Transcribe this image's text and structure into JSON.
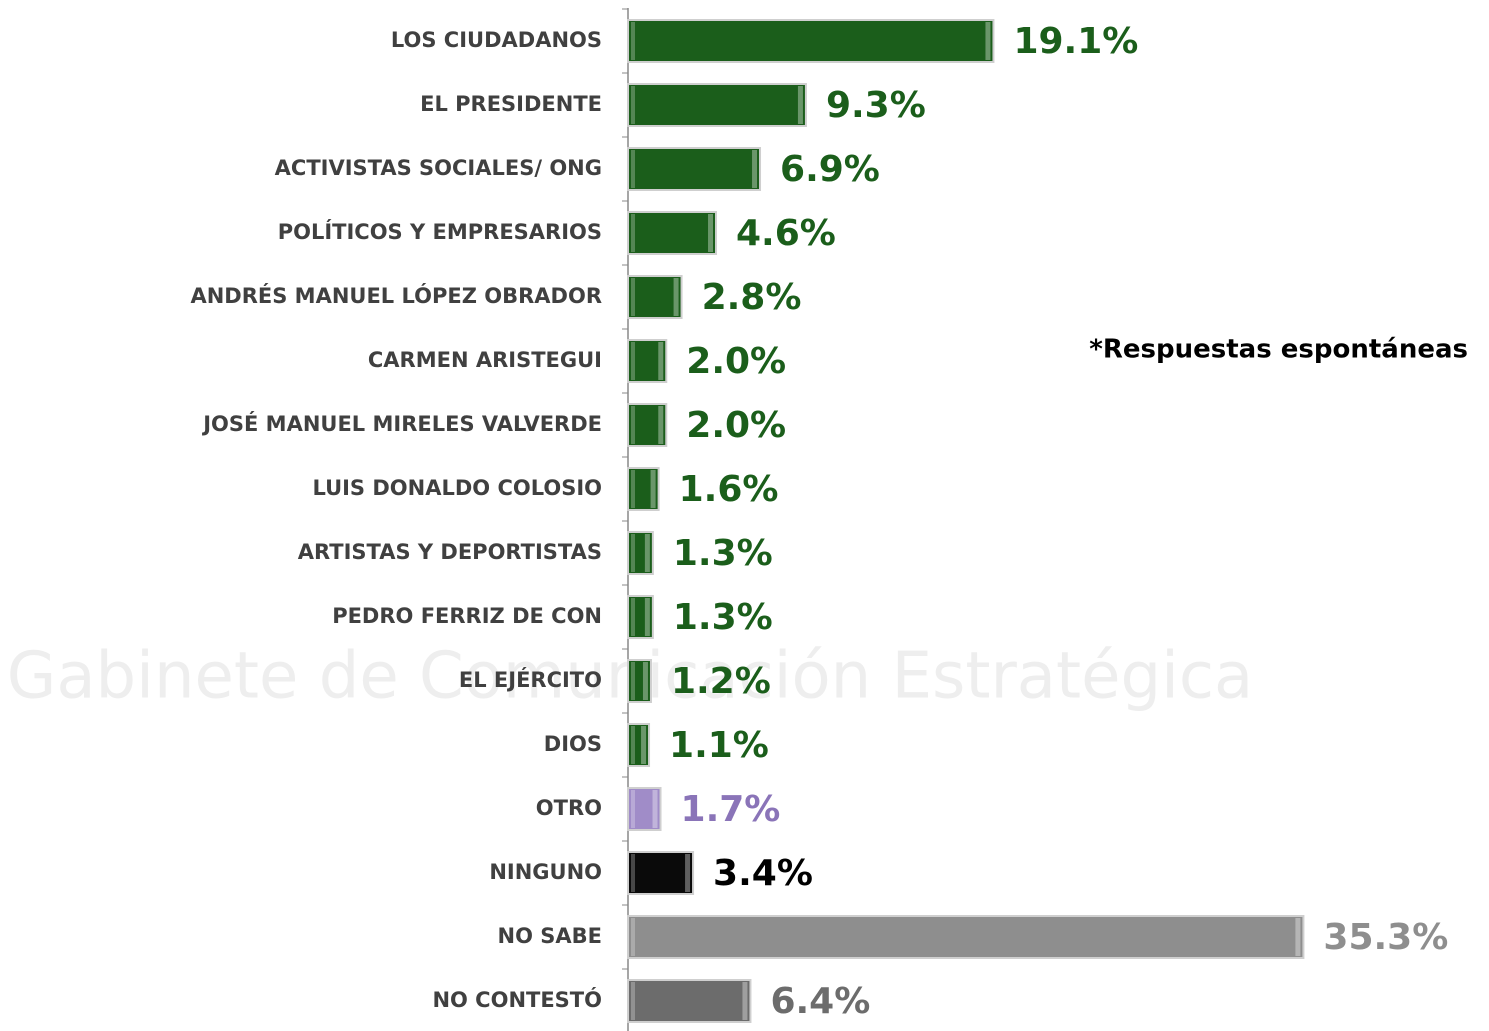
{
  "chart_data": {
    "type": "bar",
    "orientation": "horizontal",
    "categories": [
      "LOS CIUDADANOS",
      "EL PRESIDENTE",
      "ACTIVISTAS SOCIALES/ ONG",
      "POLÍTICOS Y EMPRESARIOS",
      "ANDRÉS MANUEL LÓPEZ OBRADOR",
      "CARMEN ARISTEGUI",
      "JOSÉ MANUEL MIRELES VALVERDE",
      "LUIS DONALDO COLOSIO",
      "ARTISTAS Y DEPORTISTAS",
      "PEDRO FERRIZ DE CON",
      "EL EJÉRCITO",
      "DIOS",
      "OTRO",
      "NINGUNO",
      "NO SABE",
      "NO CONTESTÓ"
    ],
    "values": [
      19.1,
      9.3,
      6.9,
      4.6,
      2.8,
      2.0,
      2.0,
      1.6,
      1.3,
      1.3,
      1.2,
      1.1,
      1.7,
      3.4,
      35.3,
      6.4
    ],
    "value_labels": [
      "19.1%",
      "9.3%",
      "6.9%",
      "4.6%",
      "2.8%",
      "2.0%",
      "2.0%",
      "1.6%",
      "1.3%",
      "1.3%",
      "1.2%",
      "1.1%",
      "1.7%",
      "3.4%",
      "35.3%",
      "6.4%"
    ],
    "colors": [
      "#1b5e1b",
      "#1b5e1b",
      "#1b5e1b",
      "#1b5e1b",
      "#1b5e1b",
      "#1b5e1b",
      "#1b5e1b",
      "#1b5e1b",
      "#1b5e1b",
      "#1b5e1b",
      "#1b5e1b",
      "#1b5e1b",
      "#a08cc8",
      "#0a0a0a",
      "#8e8e8e",
      "#6c6c6c"
    ],
    "label_colors": [
      "#1b5e1b",
      "#1b5e1b",
      "#1b5e1b",
      "#1b5e1b",
      "#1b5e1b",
      "#1b5e1b",
      "#1b5e1b",
      "#1b5e1b",
      "#1b5e1b",
      "#1b5e1b",
      "#1b5e1b",
      "#1b5e1b",
      "#8a74b8",
      "#000000",
      "#8e8e8e",
      "#6c6c6c"
    ],
    "xlim": [
      0,
      45
    ],
    "annotation": "*Respuestas espontáneas",
    "watermark": "Gabinete de Comunicación Estratégica"
  }
}
